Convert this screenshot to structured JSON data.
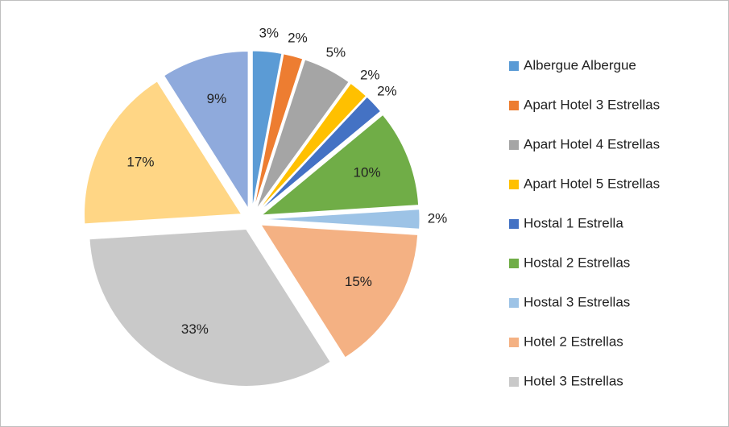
{
  "chart_data": {
    "type": "pie",
    "categories": [
      "Albergue Albergue",
      "Apart Hotel 3 Estrellas",
      "Apart Hotel 4 Estrellas",
      "Apart Hotel 5 Estrellas",
      "Hostal 1 Estrella",
      "Hostal 2 Estrellas",
      "Hostal 3 Estrellas",
      "Hotel 2 Estrellas",
      "Hotel 3 Estrellas",
      null,
      null
    ],
    "values": [
      3,
      2,
      5,
      2,
      2,
      10,
      2,
      15,
      33,
      17,
      9
    ],
    "value_labels": [
      "3%",
      "2%",
      "5%",
      "2%",
      "2%",
      "10%",
      "2%",
      "15%",
      "33%",
      "17%",
      "9%"
    ],
    "colors": [
      "#5b9bd5",
      "#ed7d31",
      "#a5a5a5",
      "#ffc000",
      "#4472c4",
      "#70ad47",
      "#9dc3e6",
      "#f4b183",
      "#c9c9c9",
      "#ffd685",
      "#8faadc"
    ],
    "legend": "right"
  }
}
